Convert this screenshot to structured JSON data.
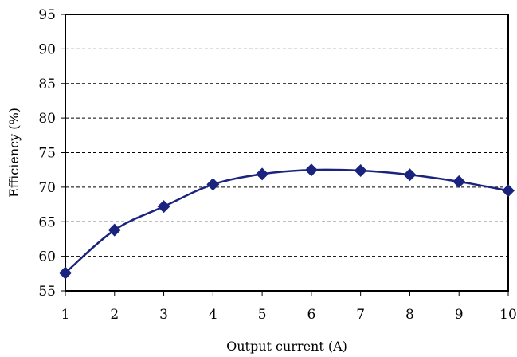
{
  "chart_data": {
    "type": "line",
    "title": "",
    "xlabel": "Output current (A)",
    "ylabel": "Efficiency (%)",
    "x": [
      1,
      2,
      3,
      4,
      5,
      6,
      7,
      8,
      9,
      10
    ],
    "xticks": [
      "1",
      "2",
      "3",
      "4",
      "5",
      "6",
      "7",
      "8",
      "9",
      "10"
    ],
    "yticks": [
      "55",
      "60",
      "65",
      "70",
      "75",
      "80",
      "85",
      "90",
      "95"
    ],
    "xlim": [
      1,
      10
    ],
    "ylim": [
      55,
      95
    ],
    "grid": "horizontal dashed",
    "legend": "none",
    "series": [
      {
        "values": [
          57.6,
          63.8,
          67.2,
          70.4,
          71.9,
          72.5,
          72.4,
          71.8,
          70.8,
          69.5
        ],
        "color": "#1a237e",
        "marker": "diamond",
        "smooth": true
      }
    ]
  }
}
